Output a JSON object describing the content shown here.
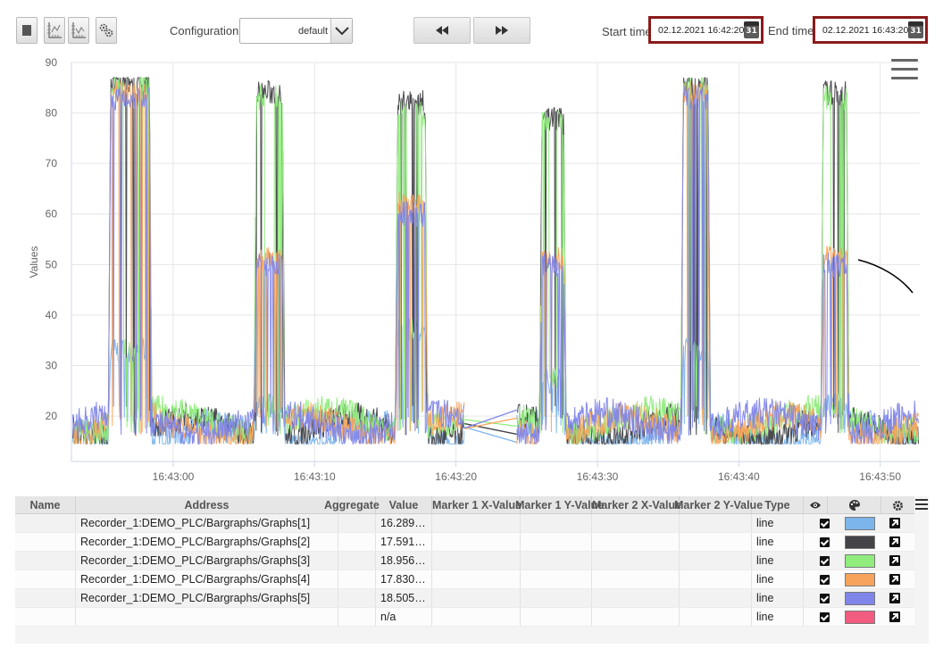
{
  "toolbar": {
    "config_label": "Configuration:",
    "config_value": "default",
    "start_label": "Start time:",
    "start_value": "02.12.2021 16:42:20",
    "end_label": "End time:",
    "end_value": "02.12.2021 16:43:20",
    "calendar_day": "31"
  },
  "chart_data": {
    "type": "line",
    "ylabel": "Values",
    "ylim": [
      11,
      90
    ],
    "y_ticks": [
      "90",
      "80",
      "70",
      "60",
      "50",
      "40",
      "30",
      "20"
    ],
    "x_ticks": [
      "16:43:00",
      "16:43:10",
      "16:43:20",
      "16:43:30",
      "16:43:40",
      "16:43:50"
    ],
    "x_tick_seconds": [
      0,
      10,
      20,
      30,
      40,
      50
    ],
    "xlim_seconds": [
      -7.2,
      52.8
    ],
    "grid": true,
    "pulses": [
      {
        "start": -4.6,
        "end": -1.5,
        "plateaus": [
          33,
          86,
          85,
          84,
          83,
          82
        ]
      },
      {
        "start": 5.7,
        "end": 7.9,
        "plateaus": [
          22,
          84,
          83,
          51,
          50,
          49
        ]
      },
      {
        "start": 15.7,
        "end": 18.0,
        "plateaus": [
          37,
          82,
          80,
          62,
          60,
          59
        ]
      },
      {
        "start": 25.9,
        "end": 27.8,
        "plateaus": [
          27,
          79,
          78,
          51,
          50,
          49
        ]
      },
      {
        "start": 35.9,
        "end": 38.0,
        "plateaus": [
          33,
          86,
          85,
          84,
          83,
          82
        ]
      },
      {
        "start": 45.8,
        "end": 47.8,
        "plateaus": [
          22,
          84,
          83,
          52,
          50,
          49
        ]
      }
    ],
    "gap_seconds": [
      20.6,
      24.3
    ],
    "series": [
      {
        "name": "Recorder_1:DEMO_PLC/Bargraphs/Graphs[1]",
        "color": "#7cb5ec",
        "base": 16.3
      },
      {
        "name": "Recorder_1:DEMO_PLC/Bargraphs/Graphs[2]",
        "color": "#434348",
        "base": 17.6
      },
      {
        "name": "Recorder_1:DEMO_PLC/Bargraphs/Graphs[3]",
        "color": "#90ed7d",
        "base": 19.0
      },
      {
        "name": "Recorder_1:DEMO_PLC/Bargraphs/Graphs[4]",
        "color": "#f7a35c",
        "base": 17.8
      },
      {
        "name": "Recorder_1:DEMO_PLC/Bargraphs/Graphs[5]",
        "color": "#8085e9",
        "base": 18.5
      }
    ]
  },
  "table": {
    "headers": {
      "name": "Name",
      "address": "Address",
      "aggregate": "Aggregate",
      "value": "Value",
      "m1x": "Marker 1 X-Value",
      "m1y": "Marker 1 Y-Value",
      "m2x": "Marker 2 X-Value",
      "m2y": "Marker 2 Y-Value",
      "type": "Type"
    },
    "rows": [
      {
        "name": "",
        "address": "Recorder_1:DEMO_PLC/Bargraphs/Graphs[1]",
        "value": "16.289…",
        "type": "line",
        "color": "#7cb5ec",
        "visible": true
      },
      {
        "name": "",
        "address": "Recorder_1:DEMO_PLC/Bargraphs/Graphs[2]",
        "value": "17.591…",
        "type": "line",
        "color": "#434348",
        "visible": true
      },
      {
        "name": "",
        "address": "Recorder_1:DEMO_PLC/Bargraphs/Graphs[3]",
        "value": "18.956…",
        "type": "line",
        "color": "#90ed7d",
        "visible": true
      },
      {
        "name": "",
        "address": "Recorder_1:DEMO_PLC/Bargraphs/Graphs[4]",
        "value": "17.830…",
        "type": "line",
        "color": "#f7a35c",
        "visible": true
      },
      {
        "name": "",
        "address": "Recorder_1:DEMO_PLC/Bargraphs/Graphs[5]",
        "value": "18.505…",
        "type": "line",
        "color": "#8085e9",
        "visible": true
      },
      {
        "name": "",
        "address": "",
        "value": "n/a",
        "type": "line",
        "color": "#f15c80",
        "visible": true
      }
    ]
  }
}
